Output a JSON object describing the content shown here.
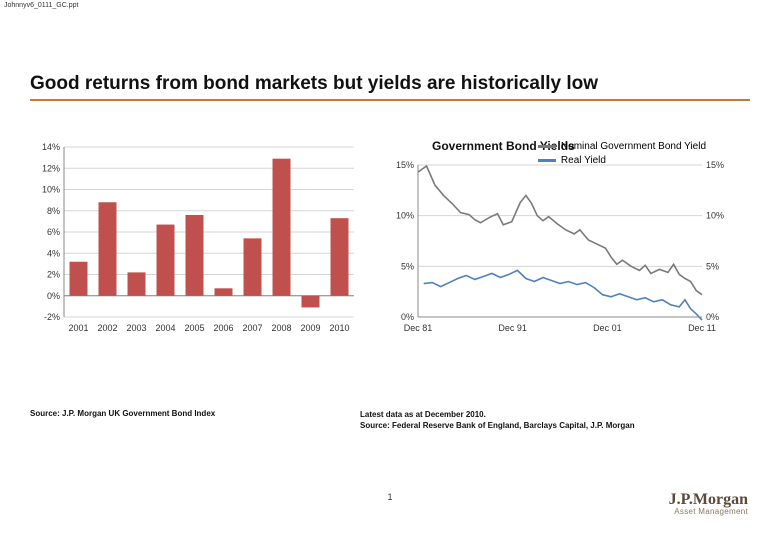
{
  "file_label": "Johnnyv6_0111_GC.ppt",
  "title": "Good returns from bond markets but yields are historically low",
  "left_chart": {
    "type": "bar",
    "categories": [
      "2001",
      "2002",
      "2003",
      "2004",
      "2005",
      "2006",
      "2007",
      "2008",
      "2009",
      "2010"
    ],
    "values": [
      3.2,
      8.8,
      2.2,
      6.7,
      7.6,
      0.7,
      5.4,
      12.9,
      -1.1,
      7.3
    ],
    "bar_color": "#c0504d",
    "ylim": [
      -2,
      14
    ],
    "ytick_step": 2,
    "yticks": [
      "-2%",
      "0%",
      "2%",
      "4%",
      "6%",
      "8%",
      "10%",
      "12%",
      "14%"
    ],
    "grid_color": "#d6d6d6",
    "label_fontsize": 9
  },
  "right_chart": {
    "type": "line",
    "title": "Government Bond Yields",
    "xlabels": [
      "Dec 81",
      "Dec 91",
      "Dec 01",
      "Dec 11"
    ],
    "ylim": [
      0,
      15
    ],
    "yticks": [
      "0%",
      "5%",
      "10%",
      "15%"
    ],
    "grid_color": "#d8d8d8",
    "series": [
      {
        "name": "Nominal Government Bond Yield",
        "color": "#7a7a7a",
        "points": [
          [
            0,
            14.3
          ],
          [
            0.03,
            14.9
          ],
          [
            0.06,
            13.0
          ],
          [
            0.09,
            12.0
          ],
          [
            0.12,
            11.2
          ],
          [
            0.15,
            10.3
          ],
          [
            0.18,
            10.1
          ],
          [
            0.2,
            9.6
          ],
          [
            0.22,
            9.3
          ],
          [
            0.25,
            9.8
          ],
          [
            0.28,
            10.2
          ],
          [
            0.3,
            9.1
          ],
          [
            0.33,
            9.4
          ],
          [
            0.36,
            11.3
          ],
          [
            0.38,
            12.0
          ],
          [
            0.4,
            11.2
          ],
          [
            0.42,
            10.0
          ],
          [
            0.44,
            9.5
          ],
          [
            0.46,
            9.9
          ],
          [
            0.49,
            9.2
          ],
          [
            0.52,
            8.6
          ],
          [
            0.55,
            8.2
          ],
          [
            0.57,
            8.6
          ],
          [
            0.6,
            7.6
          ],
          [
            0.63,
            7.2
          ],
          [
            0.66,
            6.8
          ],
          [
            0.68,
            5.9
          ],
          [
            0.7,
            5.2
          ],
          [
            0.72,
            5.6
          ],
          [
            0.75,
            5.0
          ],
          [
            0.78,
            4.6
          ],
          [
            0.8,
            5.1
          ],
          [
            0.82,
            4.3
          ],
          [
            0.85,
            4.7
          ],
          [
            0.88,
            4.4
          ],
          [
            0.9,
            5.2
          ],
          [
            0.92,
            4.2
          ],
          [
            0.94,
            3.8
          ],
          [
            0.96,
            3.5
          ],
          [
            0.98,
            2.6
          ],
          [
            1.0,
            2.2
          ]
        ]
      },
      {
        "name": "Real Yield",
        "color": "#4f81bd",
        "points": [
          [
            0.02,
            3.3
          ],
          [
            0.05,
            3.4
          ],
          [
            0.08,
            3.0
          ],
          [
            0.11,
            3.4
          ],
          [
            0.14,
            3.8
          ],
          [
            0.17,
            4.1
          ],
          [
            0.2,
            3.7
          ],
          [
            0.23,
            4.0
          ],
          [
            0.26,
            4.3
          ],
          [
            0.29,
            3.9
          ],
          [
            0.32,
            4.2
          ],
          [
            0.35,
            4.6
          ],
          [
            0.38,
            3.8
          ],
          [
            0.41,
            3.5
          ],
          [
            0.44,
            3.9
          ],
          [
            0.47,
            3.6
          ],
          [
            0.5,
            3.3
          ],
          [
            0.53,
            3.5
          ],
          [
            0.56,
            3.2
          ],
          [
            0.59,
            3.4
          ],
          [
            0.62,
            2.9
          ],
          [
            0.65,
            2.2
          ],
          [
            0.68,
            2.0
          ],
          [
            0.71,
            2.3
          ],
          [
            0.74,
            2.0
          ],
          [
            0.77,
            1.7
          ],
          [
            0.8,
            1.9
          ],
          [
            0.83,
            1.5
          ],
          [
            0.86,
            1.7
          ],
          [
            0.89,
            1.2
          ],
          [
            0.92,
            1.0
          ],
          [
            0.94,
            1.7
          ],
          [
            0.96,
            0.8
          ],
          [
            0.98,
            0.3
          ],
          [
            1.0,
            -0.3
          ]
        ]
      }
    ]
  },
  "source_left": "Source: J.P. Morgan UK Government Bond Index",
  "source_right_line1": "Latest data as at December 2010.",
  "source_right_line2": "Source: Federal Reserve Bank of England, Barclays Capital, J.P. Morgan",
  "logo_main": "J.P.Morgan",
  "logo_sub": "Asset Management",
  "page_number": "1"
}
